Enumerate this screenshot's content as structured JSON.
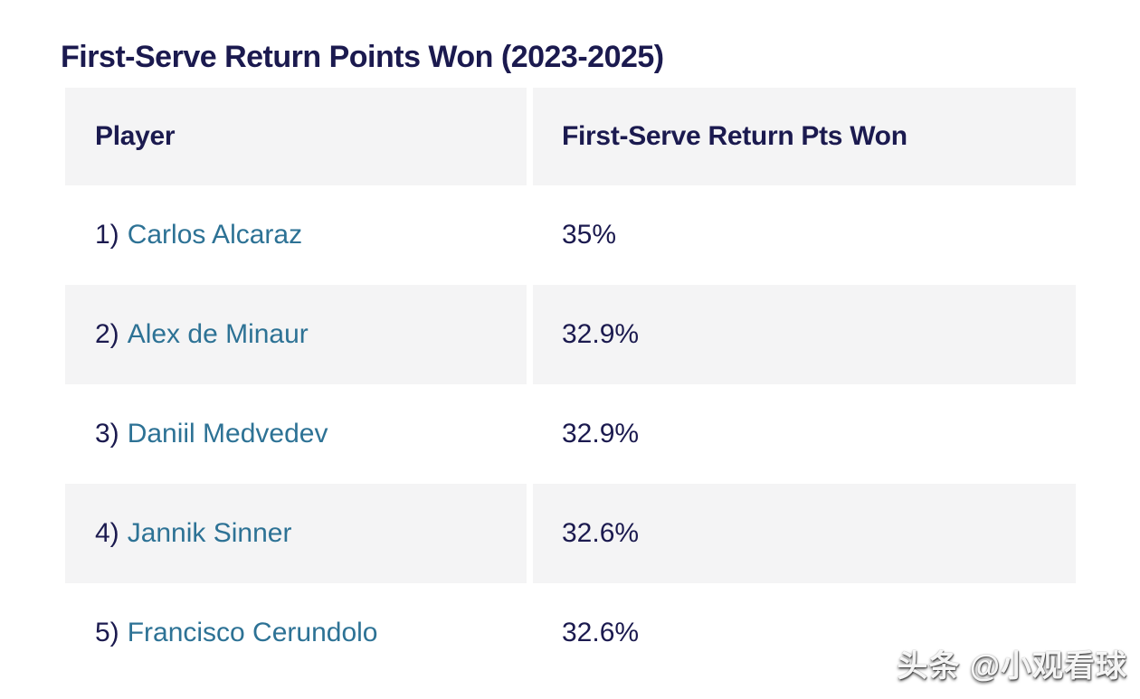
{
  "title": "First-Serve Return Points Won (2023-2025)",
  "table": {
    "columns": [
      "Player",
      "First-Serve Return Pts Won"
    ],
    "rows": [
      {
        "rank": "1)",
        "player": "Carlos Alcaraz",
        "value": "35%"
      },
      {
        "rank": "2)",
        "player": "Alex de Minaur",
        "value": "32.9%"
      },
      {
        "rank": "3)",
        "player": "Daniil Medvedev",
        "value": "32.9%"
      },
      {
        "rank": "4)",
        "player": "Jannik Sinner",
        "value": "32.6%"
      },
      {
        "rank": "5)",
        "player": "Francisco Cerundolo",
        "value": "32.6%"
      }
    ]
  },
  "watermark": "头条 @小观看球",
  "colors": {
    "heading_navy": "#1b1a4f",
    "player_link_teal": "#2d7295",
    "row_gray": "#f4f4f5",
    "background": "#ffffff"
  },
  "chart_data": {
    "type": "table",
    "title": "First-Serve Return Points Won (2023-2025)",
    "columns": [
      "Player",
      "First-Serve Return Pts Won"
    ],
    "rows": [
      [
        "1) Carlos Alcaraz",
        "35%"
      ],
      [
        "2) Alex de Minaur",
        "32.9%"
      ],
      [
        "3) Daniil Medvedev",
        "32.9%"
      ],
      [
        "4) Jannik Sinner",
        "32.6%"
      ],
      [
        "5) Francisco Cerundolo",
        "32.6%"
      ]
    ],
    "values_numeric": [
      35,
      32.9,
      32.9,
      32.6,
      32.6
    ],
    "layout_hints": {
      "striped_rows": true,
      "header_row": true,
      "grid": false
    }
  }
}
